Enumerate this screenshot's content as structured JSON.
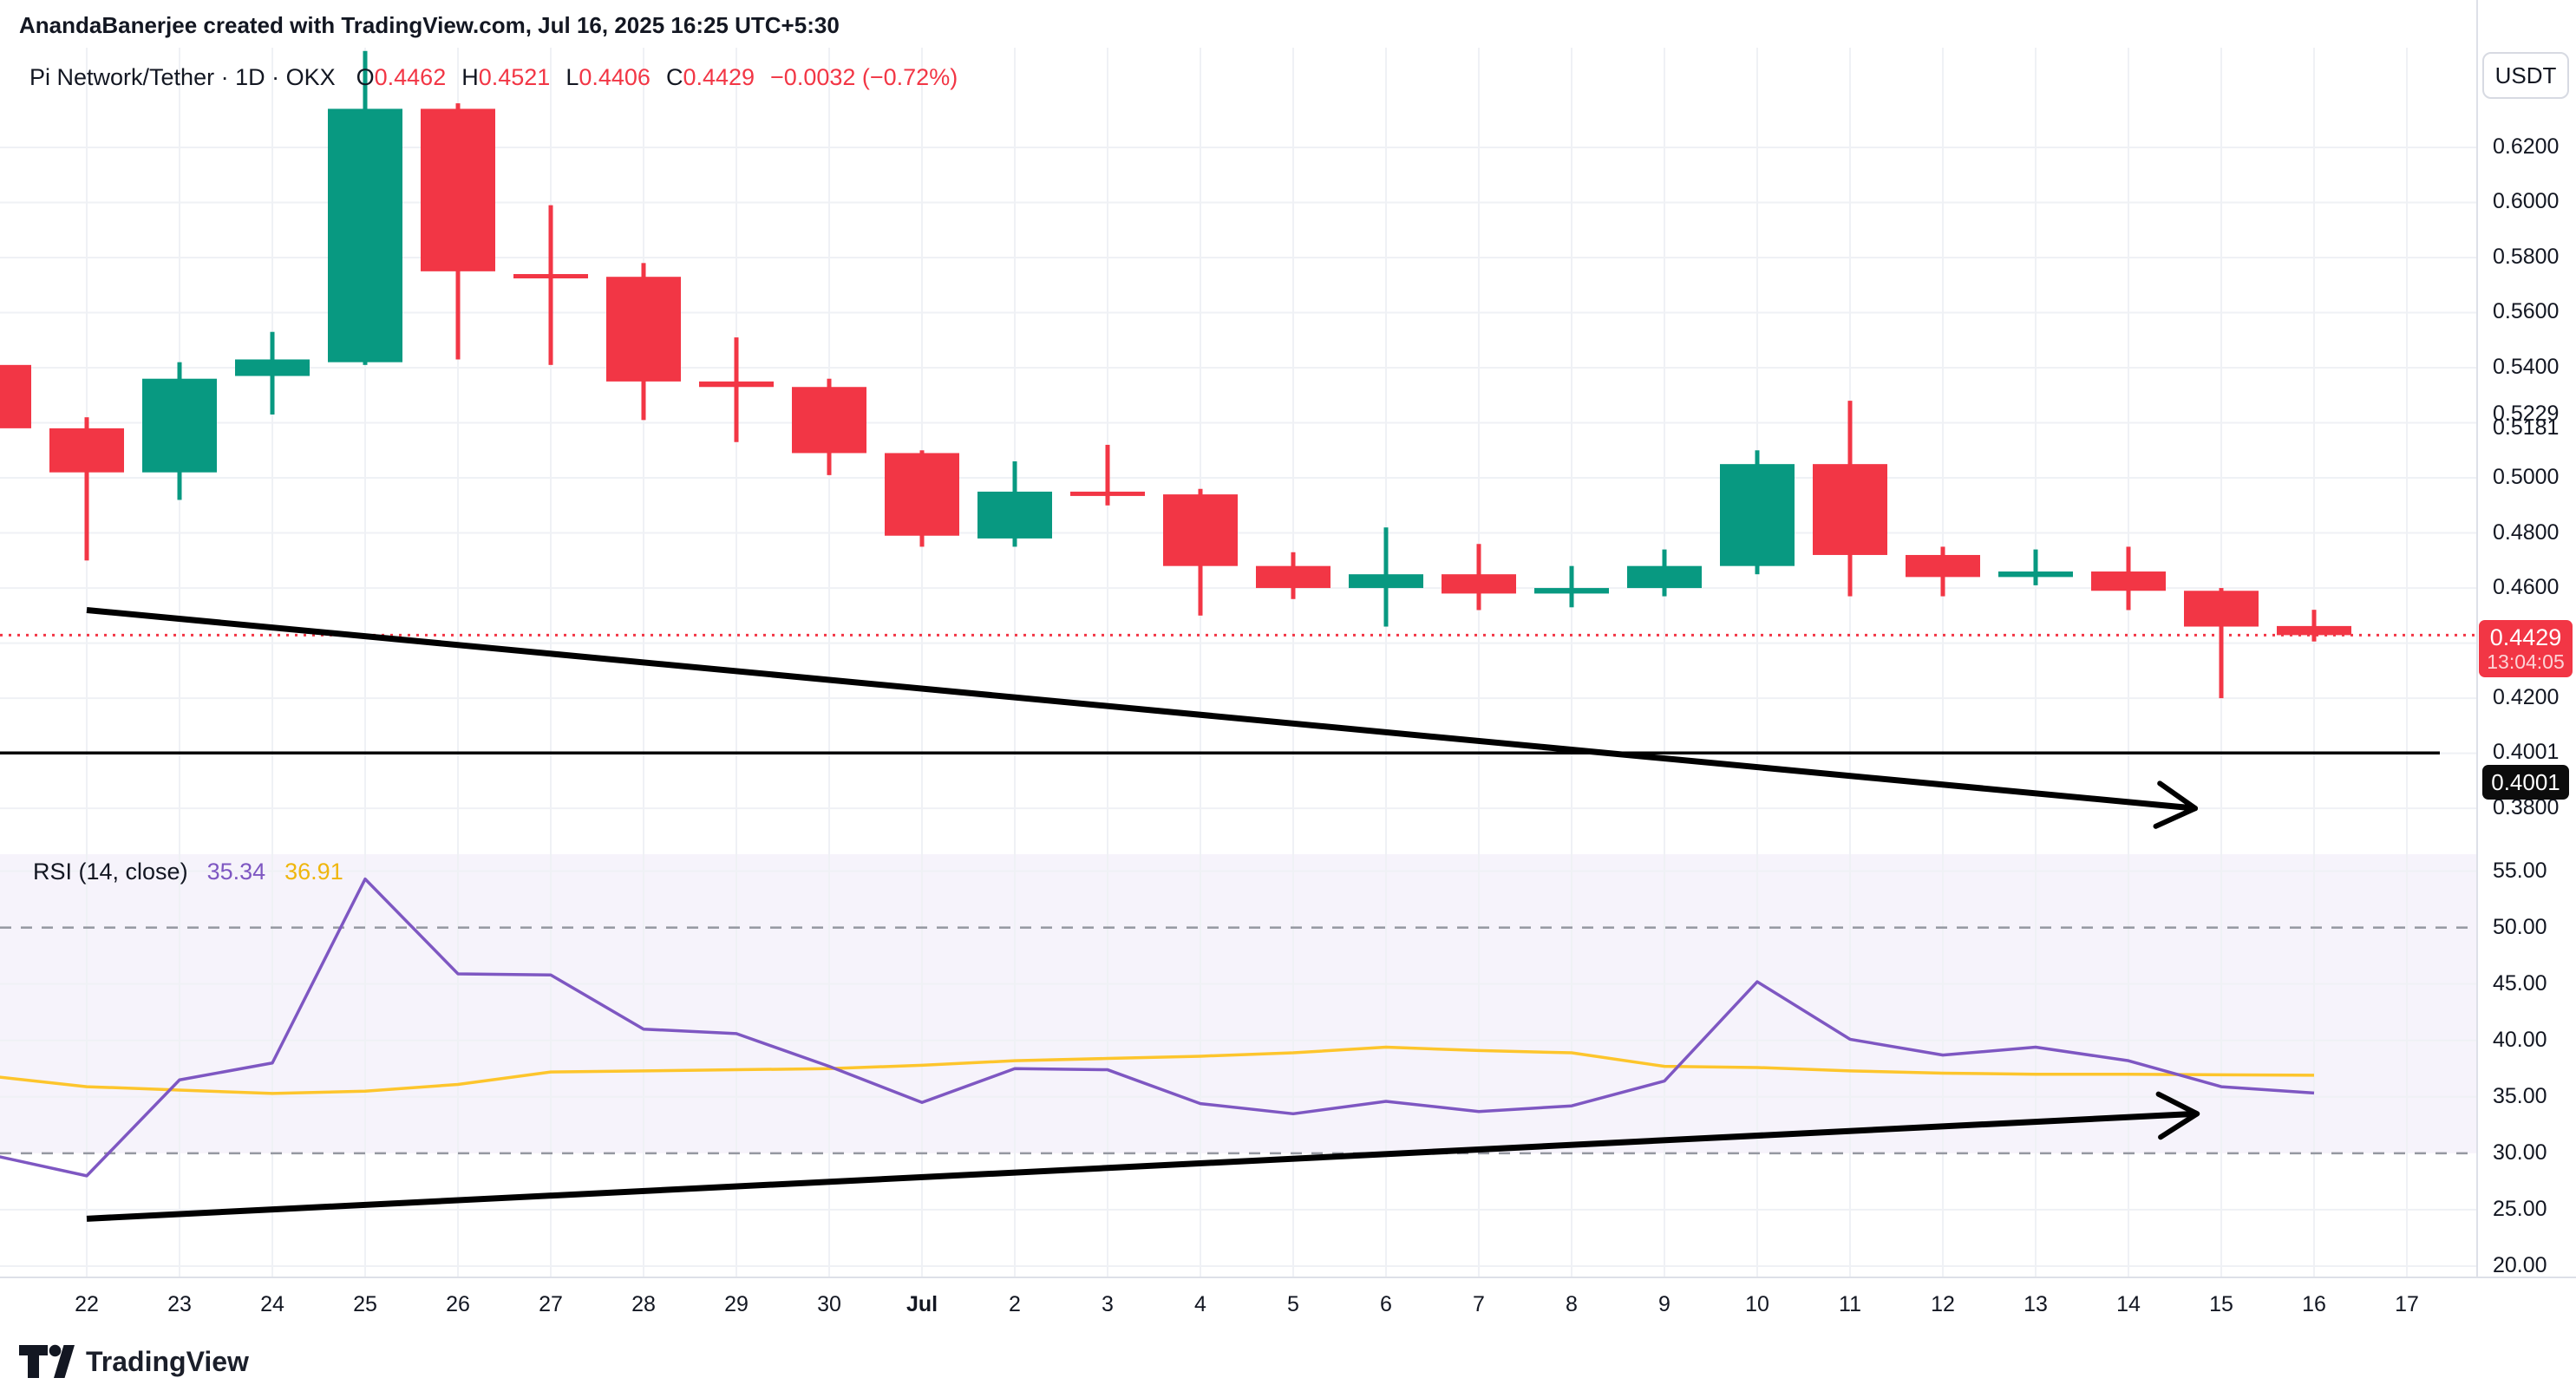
{
  "header": {
    "attribution": "AnandaBanerjee created with TradingView.com, Jul 16, 2025 16:25 UTC+5:30"
  },
  "legend": {
    "symbol_line": "Pi Network/Tether · 1D · OKX",
    "o_label": "O",
    "o": "0.4462",
    "h_label": "H",
    "h": "0.4521",
    "l_label": "L",
    "l": "0.4406",
    "c_label": "C",
    "c": "0.4429",
    "change": "−0.0032 (−0.72%)"
  },
  "rsi_legend": {
    "title": "RSI (14, close)",
    "rsi_value": "35.34",
    "ma_value": "36.91"
  },
  "price_axis": {
    "unit": "USDT",
    "labels": [
      {
        "text": "0.6200",
        "value": 0.62
      },
      {
        "text": "0.6000",
        "value": 0.6
      },
      {
        "text": "0.5800",
        "value": 0.58
      },
      {
        "text": "0.5600",
        "value": 0.56
      },
      {
        "text": "0.5400",
        "value": 0.54
      },
      {
        "text": "0.5229",
        "value": 0.5229
      },
      {
        "text": "0.5181",
        "value": 0.5181
      },
      {
        "text": "0.5000",
        "value": 0.5
      },
      {
        "text": "0.4800",
        "value": 0.48
      },
      {
        "text": "0.4600",
        "value": 0.46
      },
      {
        "text": "0.4200",
        "value": 0.42
      },
      {
        "text": "0.4001",
        "value": 0.4001
      },
      {
        "text": "0.3800",
        "value": 0.38
      }
    ],
    "last_price_badge": {
      "price": "0.4429",
      "countdown": "13:04:05"
    },
    "line_badge": {
      "price": "0.4001"
    }
  },
  "rsi_axis": {
    "labels": [
      {
        "text": "55.00",
        "value": 55
      },
      {
        "text": "50.00",
        "value": 50
      },
      {
        "text": "45.00",
        "value": 45
      },
      {
        "text": "40.00",
        "value": 40
      },
      {
        "text": "35.00",
        "value": 35
      },
      {
        "text": "30.00",
        "value": 30
      },
      {
        "text": "25.00",
        "value": 25
      },
      {
        "text": "20.00",
        "value": 20
      }
    ]
  },
  "date_axis": {
    "labels": [
      {
        "text": "22"
      },
      {
        "text": "23"
      },
      {
        "text": "24"
      },
      {
        "text": "25"
      },
      {
        "text": "26"
      },
      {
        "text": "27"
      },
      {
        "text": "28"
      },
      {
        "text": "29"
      },
      {
        "text": "30"
      },
      {
        "text": "Jul",
        "bold": true
      },
      {
        "text": "2"
      },
      {
        "text": "3"
      },
      {
        "text": "4"
      },
      {
        "text": "5"
      },
      {
        "text": "6"
      },
      {
        "text": "7"
      },
      {
        "text": "8"
      },
      {
        "text": "9"
      },
      {
        "text": "10"
      },
      {
        "text": "11"
      },
      {
        "text": "12"
      },
      {
        "text": "13"
      },
      {
        "text": "14"
      },
      {
        "text": "15"
      },
      {
        "text": "16"
      },
      {
        "text": "17"
      }
    ]
  },
  "footer": {
    "logo_text": "TradingView"
  },
  "colors": {
    "up": "#089981",
    "down": "#F23645",
    "rsi_line": "#7E57C2",
    "rsi_ma_line": "#FDC52C",
    "rsi_band_fill": "rgba(126,87,194,0.07)",
    "band_dash": "#9598a1",
    "grid": "#eff1f5",
    "axis_border": "#dde0e8",
    "trend_black": "#000000",
    "badge_red": "#F23645",
    "badge_black": "#0c0c0c"
  },
  "chart_data": {
    "type": "candlestick",
    "title": "Pi Network/Tether · 1D · OKX",
    "current_price": 0.4429,
    "horizontal_line_price": 0.4001,
    "price_ylim": [
      0.3643,
      0.6373
    ],
    "price_gridlines": [
      0.62,
      0.6,
      0.58,
      0.56,
      0.54,
      0.52,
      0.5,
      0.48,
      0.46,
      0.44,
      0.42,
      0.4,
      0.38
    ],
    "candles": [
      {
        "date": "Jun 21",
        "open": 0.541,
        "high": 0.541,
        "low": 0.517,
        "close": 0.518
      },
      {
        "date": "Jun 22",
        "open": 0.518,
        "high": 0.522,
        "low": 0.47,
        "close": 0.502
      },
      {
        "date": "Jun 23",
        "open": 0.502,
        "high": 0.542,
        "low": 0.492,
        "close": 0.536
      },
      {
        "date": "Jun 24",
        "open": 0.537,
        "high": 0.553,
        "low": 0.523,
        "close": 0.543
      },
      {
        "date": "Jun 25",
        "open": 0.542,
        "high": 0.655,
        "low": 0.541,
        "close": 0.634
      },
      {
        "date": "Jun 26",
        "open": 0.634,
        "high": 0.636,
        "low": 0.543,
        "close": 0.575
      },
      {
        "date": "Jun 27",
        "open": 0.574,
        "high": 0.599,
        "low": 0.541,
        "close": 0.573
      },
      {
        "date": "Jun 28",
        "open": 0.573,
        "high": 0.578,
        "low": 0.521,
        "close": 0.535
      },
      {
        "date": "Jun 29",
        "open": 0.535,
        "high": 0.551,
        "low": 0.513,
        "close": 0.533
      },
      {
        "date": "Jun 30",
        "open": 0.533,
        "high": 0.536,
        "low": 0.501,
        "close": 0.509
      },
      {
        "date": "Jul 1",
        "open": 0.509,
        "high": 0.51,
        "low": 0.475,
        "close": 0.479
      },
      {
        "date": "Jul 2",
        "open": 0.478,
        "high": 0.506,
        "low": 0.475,
        "close": 0.495
      },
      {
        "date": "Jul 3",
        "open": 0.495,
        "high": 0.512,
        "low": 0.49,
        "close": 0.494
      },
      {
        "date": "Jul 4",
        "open": 0.494,
        "high": 0.496,
        "low": 0.45,
        "close": 0.468
      },
      {
        "date": "Jul 5",
        "open": 0.468,
        "high": 0.473,
        "low": 0.456,
        "close": 0.46
      },
      {
        "date": "Jul 6",
        "open": 0.46,
        "high": 0.482,
        "low": 0.446,
        "close": 0.465
      },
      {
        "date": "Jul 7",
        "open": 0.465,
        "high": 0.476,
        "low": 0.452,
        "close": 0.458
      },
      {
        "date": "Jul 8",
        "open": 0.458,
        "high": 0.468,
        "low": 0.453,
        "close": 0.46
      },
      {
        "date": "Jul 9",
        "open": 0.46,
        "high": 0.474,
        "low": 0.457,
        "close": 0.468
      },
      {
        "date": "Jul 10",
        "open": 0.468,
        "high": 0.51,
        "low": 0.465,
        "close": 0.505
      },
      {
        "date": "Jul 11",
        "open": 0.505,
        "high": 0.528,
        "low": 0.457,
        "close": 0.472
      },
      {
        "date": "Jul 12",
        "open": 0.472,
        "high": 0.475,
        "low": 0.457,
        "close": 0.464
      },
      {
        "date": "Jul 13",
        "open": 0.464,
        "high": 0.474,
        "low": 0.461,
        "close": 0.466
      },
      {
        "date": "Jul 14",
        "open": 0.466,
        "high": 0.475,
        "low": 0.452,
        "close": 0.459
      },
      {
        "date": "Jul 15",
        "open": 0.459,
        "high": 0.46,
        "low": 0.42,
        "close": 0.446
      },
      {
        "date": "Jul 16",
        "open": 0.4462,
        "high": 0.4521,
        "low": 0.4406,
        "close": 0.4429
      }
    ],
    "rsi": {
      "period": 14,
      "source": "close",
      "ylim": [
        19.0,
        56.5
      ],
      "bands": [
        50,
        30
      ],
      "gridlines": [
        55,
        45,
        40,
        35,
        25,
        20
      ],
      "values": [
        29.8,
        28.0,
        36.5,
        38.0,
        54.3,
        45.9,
        45.8,
        41.0,
        40.6,
        37.7,
        34.5,
        37.5,
        37.4,
        34.4,
        33.5,
        34.6,
        33.7,
        34.2,
        36.4,
        45.2,
        40.1,
        38.7,
        39.4,
        38.2,
        35.9,
        35.34
      ],
      "ma_values": [
        36.8,
        35.9,
        35.6,
        35.3,
        35.5,
        36.1,
        37.2,
        37.3,
        37.4,
        37.5,
        37.8,
        38.2,
        38.4,
        38.6,
        38.9,
        39.4,
        39.1,
        38.9,
        37.7,
        37.6,
        37.3,
        37.1,
        37.0,
        37.0,
        36.95,
        36.91
      ]
    },
    "trendlines": [
      {
        "pane": "price",
        "x1_index": 1,
        "y1": 0.452,
        "x2_index": 23.72,
        "y2": 0.38,
        "arrow": true
      },
      {
        "pane": "rsi",
        "x1_index": 1,
        "y1": 24.2,
        "x2_index": 23.74,
        "y2": 33.5,
        "arrow": true
      }
    ]
  }
}
